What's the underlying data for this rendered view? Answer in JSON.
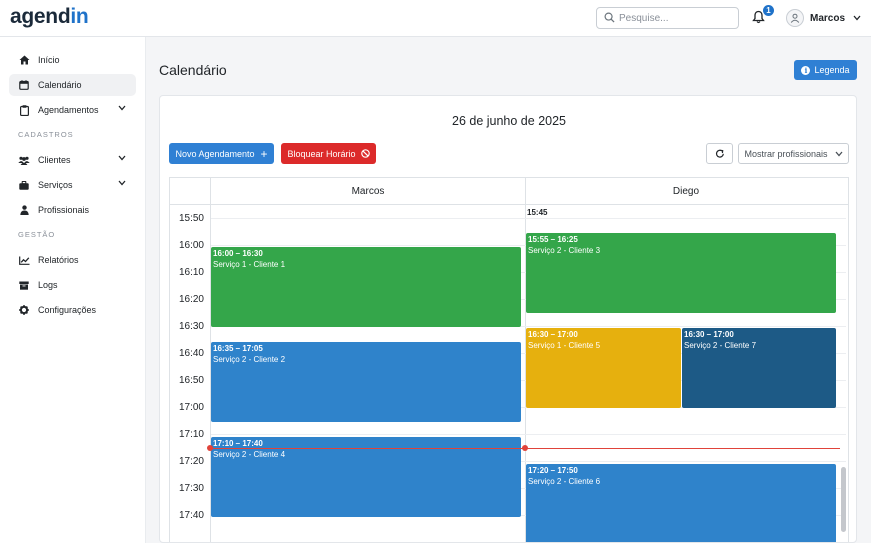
{
  "header": {
    "logo_main": "agend",
    "logo_accent": "in",
    "search_placeholder": "Pesquise...",
    "notification_count": "1",
    "user_name": "Marcos"
  },
  "sidebar": {
    "items": [
      {
        "label": "Início",
        "icon": "home-icon"
      },
      {
        "label": "Calendário",
        "icon": "calendar-icon",
        "active": true
      },
      {
        "label": "Agendamentos",
        "icon": "clipboard-icon",
        "expandable": true
      }
    ],
    "section_cadastros": "CADASTROS",
    "cadastros": [
      {
        "label": "Clientes",
        "icon": "users-icon",
        "expandable": true
      },
      {
        "label": "Serviços",
        "icon": "briefcase-icon",
        "expandable": true
      },
      {
        "label": "Profissionais",
        "icon": "user-icon"
      }
    ],
    "section_gestao": "GESTÃO",
    "gestao": [
      {
        "label": "Relatórios",
        "icon": "chart-line-icon"
      },
      {
        "label": "Logs",
        "icon": "archive-icon"
      },
      {
        "label": "Configurações",
        "icon": "gear-icon"
      }
    ]
  },
  "main": {
    "title": "Calendário",
    "legend_button": "Legenda",
    "date": "26 de junho de 2025",
    "new_button": "Novo Agendamento",
    "new_button_icon": "+",
    "block_button": "Bloquear Horário",
    "professionals_dropdown": "Mostrar profissionais"
  },
  "calendar": {
    "columns": [
      "Marcos",
      "Diego"
    ],
    "times": [
      "15:50",
      "16:00",
      "16:10",
      "16:20",
      "16:30",
      "16:40",
      "16:50",
      "17:00",
      "17:10",
      "17:20",
      "17:30",
      "17:40"
    ],
    "diego_plain_time": "15:45",
    "events": [
      {
        "time": "16:00 – 16:30",
        "desc": "Serviço 1 - Cliente 1",
        "color": "#34a64a"
      },
      {
        "time": "16:35 – 17:05",
        "desc": "Serviço 2 - Cliente 2",
        "color": "#2f83cb"
      },
      {
        "time": "17:10 – 17:40",
        "desc": "Serviço 2 - Cliente 4",
        "color": "#2f83cb"
      },
      {
        "time": "15:55 – 16:25",
        "desc": "Serviço 2 - Cliente 3",
        "color": "#34a64a"
      },
      {
        "time": "16:30 – 17:00",
        "desc": "Serviço 1 - Cliente 5",
        "color": "#e6b00e"
      },
      {
        "time": "16:30 – 17:00",
        "desc": "Serviço 2 - Cliente 7",
        "color": "#1d5a86"
      },
      {
        "time": "17:20 – 17:50",
        "desc": "Serviço 2 - Cliente 6",
        "color": "#2f83cb"
      }
    ]
  }
}
